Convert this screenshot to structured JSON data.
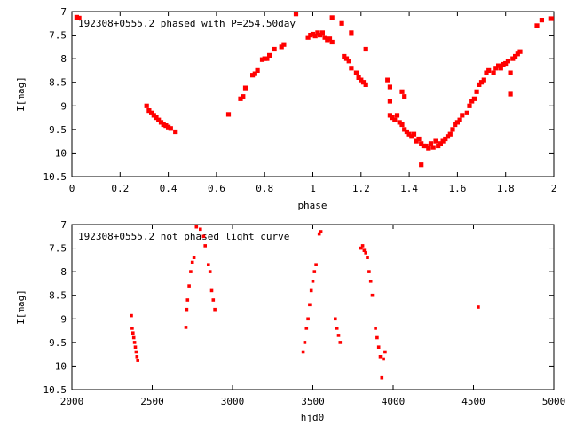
{
  "chart_data": [
    {
      "type": "scatter",
      "title": "192308+0555.2 phased with P=254.50day",
      "xlabel": "phase",
      "ylabel": "I[mag]",
      "xlim": [
        0,
        2
      ],
      "ylim": [
        10.5,
        7
      ],
      "y_inverted": true,
      "xticks": [
        "0",
        "0.2",
        "0.4",
        "0.6",
        "0.8",
        "1",
        "1.2",
        "1.4",
        "1.6",
        "1.8",
        "2"
      ],
      "yticks": [
        "7",
        "7.5",
        "8",
        "8.5",
        "9",
        "9.5",
        "10",
        "10.5"
      ],
      "color": "#ff0000",
      "series": [
        {
          "points": [
            [
              0.02,
              7.12
            ],
            [
              0.03,
              7.14
            ],
            [
              0.31,
              9.0
            ],
            [
              0.32,
              9.1
            ],
            [
              0.33,
              9.15
            ],
            [
              0.34,
              9.2
            ],
            [
              0.35,
              9.25
            ],
            [
              0.36,
              9.3
            ],
            [
              0.37,
              9.35
            ],
            [
              0.38,
              9.4
            ],
            [
              0.39,
              9.42
            ],
            [
              0.4,
              9.45
            ],
            [
              0.41,
              9.48
            ],
            [
              0.43,
              9.55
            ],
            [
              0.65,
              9.18
            ],
            [
              0.7,
              8.85
            ],
            [
              0.71,
              8.8
            ],
            [
              0.72,
              8.62
            ],
            [
              0.75,
              8.35
            ],
            [
              0.76,
              8.32
            ],
            [
              0.77,
              8.25
            ],
            [
              0.79,
              8.02
            ],
            [
              0.8,
              8.0
            ],
            [
              0.81,
              8.0
            ],
            [
              0.82,
              7.93
            ],
            [
              0.84,
              7.8
            ],
            [
              0.87,
              7.75
            ],
            [
              0.88,
              7.7
            ],
            [
              0.93,
              7.05
            ],
            [
              0.98,
              7.55
            ],
            [
              0.99,
              7.5
            ],
            [
              1.0,
              7.48
            ],
            [
              1.01,
              7.52
            ],
            [
              1.02,
              7.45
            ],
            [
              1.03,
              7.5
            ],
            [
              1.04,
              7.45
            ],
            [
              1.05,
              7.55
            ],
            [
              1.06,
              7.6
            ],
            [
              1.07,
              7.58
            ],
            [
              1.08,
              7.65
            ],
            [
              1.08,
              7.13
            ],
            [
              1.12,
              7.25
            ],
            [
              1.13,
              7.95
            ],
            [
              1.14,
              8.0
            ],
            [
              1.15,
              8.05
            ],
            [
              1.16,
              8.2
            ],
            [
              1.16,
              7.45
            ],
            [
              1.18,
              8.3
            ],
            [
              1.19,
              8.4
            ],
            [
              1.2,
              8.45
            ],
            [
              1.21,
              8.5
            ],
            [
              1.22,
              7.8
            ],
            [
              1.22,
              8.55
            ],
            [
              1.31,
              8.45
            ],
            [
              1.32,
              8.6
            ],
            [
              1.32,
              9.2
            ],
            [
              1.32,
              8.9
            ],
            [
              1.33,
              9.25
            ],
            [
              1.34,
              9.3
            ],
            [
              1.35,
              9.2
            ],
            [
              1.36,
              9.35
            ],
            [
              1.37,
              9.4
            ],
            [
              1.37,
              8.7
            ],
            [
              1.38,
              8.8
            ],
            [
              1.38,
              9.5
            ],
            [
              1.39,
              9.55
            ],
            [
              1.4,
              9.6
            ],
            [
              1.41,
              9.65
            ],
            [
              1.42,
              9.6
            ],
            [
              1.43,
              9.75
            ],
            [
              1.44,
              9.7
            ],
            [
              1.45,
              9.8
            ],
            [
              1.45,
              10.25
            ],
            [
              1.46,
              9.85
            ],
            [
              1.47,
              9.85
            ],
            [
              1.48,
              9.9
            ],
            [
              1.49,
              9.8
            ],
            [
              1.5,
              9.88
            ],
            [
              1.51,
              9.75
            ],
            [
              1.52,
              9.85
            ],
            [
              1.53,
              9.8
            ],
            [
              1.54,
              9.75
            ],
            [
              1.55,
              9.7
            ],
            [
              1.56,
              9.65
            ],
            [
              1.57,
              9.6
            ],
            [
              1.58,
              9.5
            ],
            [
              1.59,
              9.4
            ],
            [
              1.6,
              9.35
            ],
            [
              1.61,
              9.3
            ],
            [
              1.62,
              9.2
            ],
            [
              1.64,
              9.15
            ],
            [
              1.65,
              9.0
            ],
            [
              1.66,
              8.9
            ],
            [
              1.67,
              8.85
            ],
            [
              1.68,
              8.7
            ],
            [
              1.69,
              8.55
            ],
            [
              1.7,
              8.5
            ],
            [
              1.71,
              8.45
            ],
            [
              1.72,
              8.3
            ],
            [
              1.73,
              8.25
            ],
            [
              1.75,
              8.3
            ],
            [
              1.76,
              8.2
            ],
            [
              1.77,
              8.15
            ],
            [
              1.78,
              8.2
            ],
            [
              1.79,
              8.12
            ],
            [
              1.8,
              8.1
            ],
            [
              1.81,
              8.05
            ],
            [
              1.82,
              8.3
            ],
            [
              1.82,
              8.75
            ],
            [
              1.83,
              8.0
            ],
            [
              1.84,
              7.95
            ],
            [
              1.85,
              7.9
            ],
            [
              1.86,
              7.85
            ],
            [
              1.93,
              7.3
            ],
            [
              1.95,
              7.18
            ],
            [
              1.99,
              7.15
            ]
          ]
        }
      ]
    },
    {
      "type": "scatter",
      "title": "192308+0555.2 not phased light curve",
      "xlabel": "hjd0",
      "ylabel": "I[mag]",
      "xlim": [
        2000,
        5000
      ],
      "ylim": [
        10.5,
        7
      ],
      "y_inverted": true,
      "xticks": [
        "2000",
        "2500",
        "3000",
        "3500",
        "4000",
        "4500",
        "5000"
      ],
      "yticks": [
        "7",
        "7.5",
        "8",
        "8.5",
        "9",
        "9.5",
        "10",
        "10.5"
      ],
      "color": "#ff0000",
      "series": [
        {
          "points": [
            [
              2370,
              8.93
            ],
            [
              2375,
              9.2
            ],
            [
              2380,
              9.3
            ],
            [
              2385,
              9.4
            ],
            [
              2390,
              9.5
            ],
            [
              2395,
              9.6
            ],
            [
              2400,
              9.7
            ],
            [
              2405,
              9.8
            ],
            [
              2410,
              9.88
            ],
            [
              2710,
              9.18
            ],
            [
              2715,
              8.8
            ],
            [
              2720,
              8.6
            ],
            [
              2730,
              8.3
            ],
            [
              2740,
              8.0
            ],
            [
              2750,
              7.8
            ],
            [
              2760,
              7.7
            ],
            [
              2775,
              7.05
            ],
            [
              2800,
              7.1
            ],
            [
              2820,
              7.25
            ],
            [
              2830,
              7.45
            ],
            [
              2850,
              7.85
            ],
            [
              2860,
              8.0
            ],
            [
              2870,
              8.4
            ],
            [
              2880,
              8.6
            ],
            [
              2890,
              8.8
            ],
            [
              3440,
              9.7
            ],
            [
              3450,
              9.5
            ],
            [
              3460,
              9.2
            ],
            [
              3470,
              9.0
            ],
            [
              3480,
              8.7
            ],
            [
              3490,
              8.4
            ],
            [
              3500,
              8.2
            ],
            [
              3510,
              8.0
            ],
            [
              3520,
              7.85
            ],
            [
              3540,
              7.2
            ],
            [
              3550,
              7.15
            ],
            [
              3640,
              9.0
            ],
            [
              3650,
              9.2
            ],
            [
              3660,
              9.35
            ],
            [
              3670,
              9.5
            ],
            [
              3800,
              7.5
            ],
            [
              3810,
              7.45
            ],
            [
              3820,
              7.55
            ],
            [
              3830,
              7.6
            ],
            [
              3840,
              7.7
            ],
            [
              3850,
              8.0
            ],
            [
              3860,
              8.2
            ],
            [
              3870,
              8.5
            ],
            [
              3890,
              9.2
            ],
            [
              3900,
              9.4
            ],
            [
              3910,
              9.6
            ],
            [
              3920,
              9.8
            ],
            [
              3930,
              10.25
            ],
            [
              3940,
              9.85
            ],
            [
              3950,
              9.7
            ],
            [
              4530,
              8.75
            ]
          ]
        }
      ]
    }
  ]
}
